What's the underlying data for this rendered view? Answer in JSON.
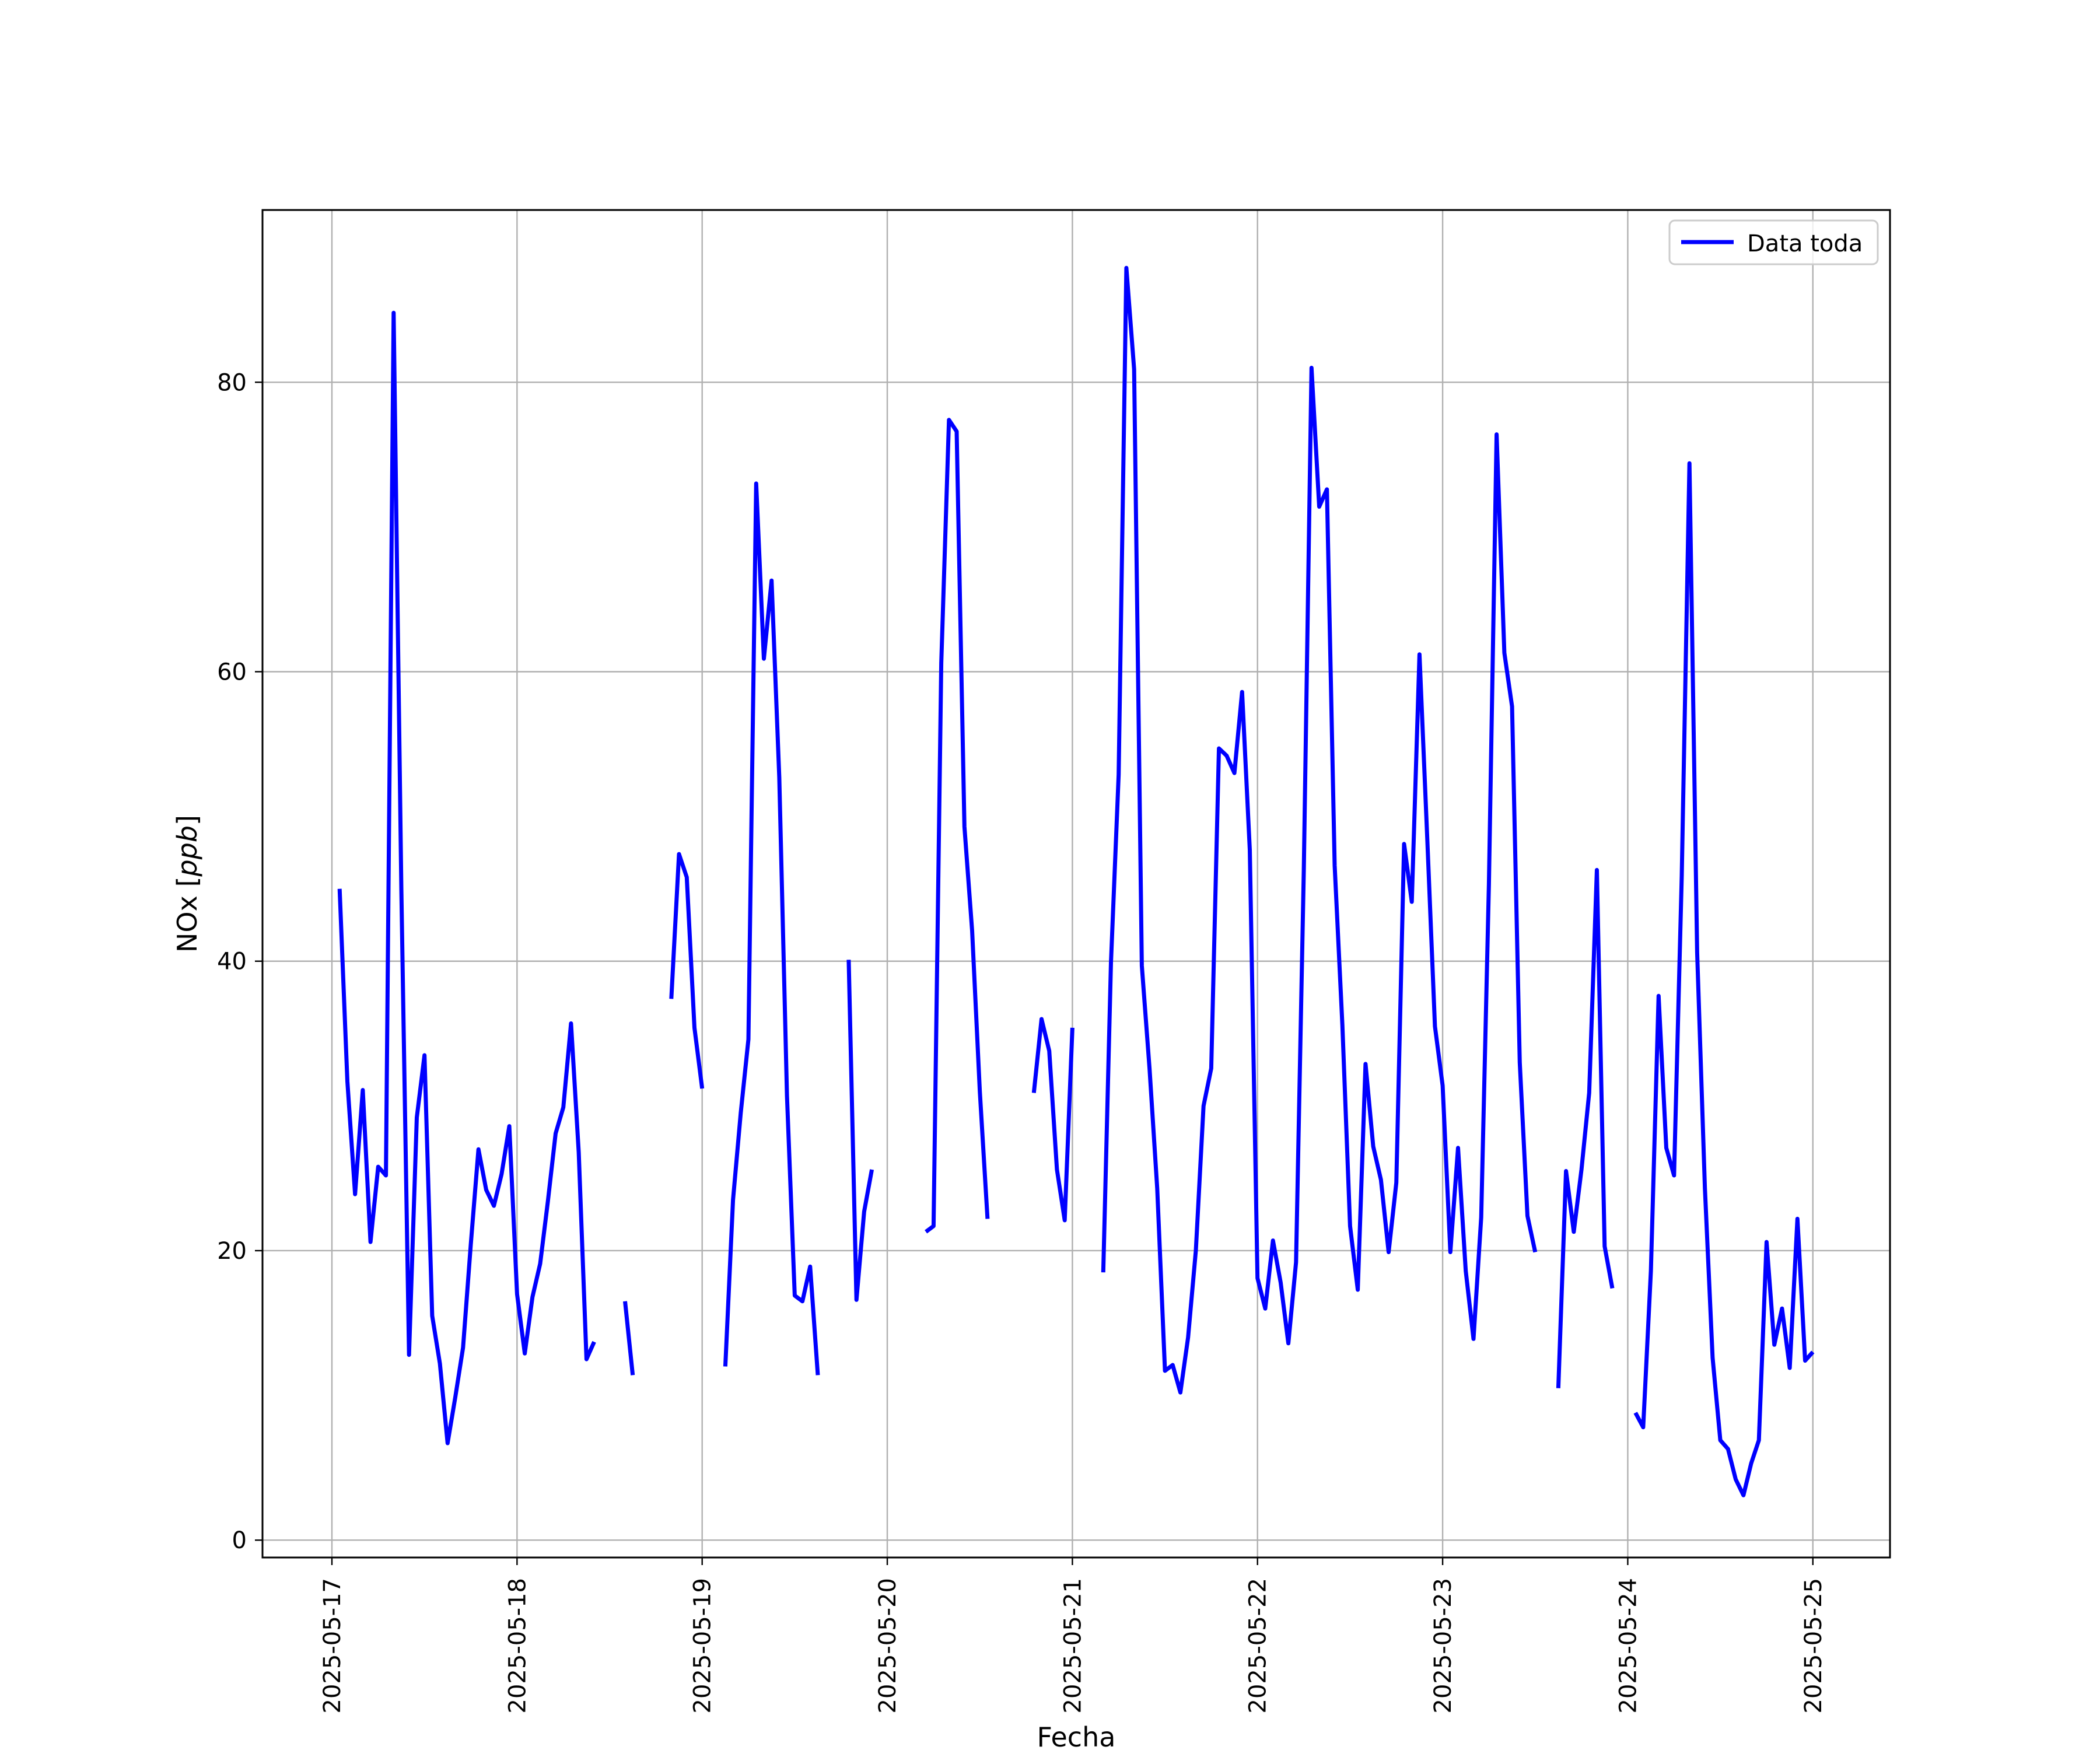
{
  "chart_data": {
    "type": "line",
    "title": "",
    "xlabel": "Fecha",
    "ylabel": "NOx [ppb]",
    "ylabel_parts": {
      "prefix": "NOx [",
      "unit": "ppb",
      "suffix": "]"
    },
    "x_tick_labels": [
      "2025-05-17",
      "2025-05-18",
      "2025-05-19",
      "2025-05-20",
      "2025-05-21",
      "2025-05-22",
      "2025-05-23",
      "2025-05-24",
      "2025-05-25"
    ],
    "y_tick_labels": [
      "0",
      "20",
      "40",
      "60",
      "80"
    ],
    "xlim": [
      "2025-05-16T15:00",
      "2025-05-25T10:00"
    ],
    "ylim": [
      -1.2,
      91.9
    ],
    "grid": true,
    "legend_position": "top-right",
    "series": [
      {
        "name": "Data toda",
        "color": "#0000ff",
        "points": [
          [
            "2025-05-17T01:00",
            45.0
          ],
          [
            "2025-05-17T02:00",
            31.7
          ],
          [
            "2025-05-17T03:00",
            23.9
          ],
          [
            "2025-05-17T04:00",
            31.1
          ],
          [
            "2025-05-17T05:00",
            20.6
          ],
          [
            "2025-05-17T06:00",
            25.8
          ],
          [
            "2025-05-17T07:00",
            25.2
          ],
          [
            "2025-05-17T08:00",
            84.8
          ],
          [
            "2025-05-17T09:00",
            45.0
          ],
          [
            "2025-05-17T10:00",
            12.8
          ],
          [
            "2025-05-17T11:00",
            29.2
          ],
          [
            "2025-05-17T12:00",
            33.5
          ],
          [
            "2025-05-17T13:00",
            15.5
          ],
          [
            "2025-05-17T14:00",
            12.2
          ],
          [
            "2025-05-17T15:00",
            6.7
          ],
          [
            "2025-05-17T16:00",
            9.9
          ],
          [
            "2025-05-17T17:00",
            13.3
          ],
          [
            "2025-05-17T18:00",
            20.4
          ],
          [
            "2025-05-17T19:00",
            27.0
          ],
          [
            "2025-05-17T20:00",
            24.2
          ],
          [
            "2025-05-17T21:00",
            23.1
          ],
          [
            "2025-05-17T22:00",
            25.3
          ],
          [
            "2025-05-17T23:00",
            28.6
          ],
          [
            "2025-05-18T00:00",
            17.0
          ],
          [
            "2025-05-18T01:00",
            12.9
          ],
          [
            "2025-05-18T02:00",
            16.8
          ],
          [
            "2025-05-18T03:00",
            19.1
          ],
          [
            "2025-05-18T04:00",
            23.4
          ],
          [
            "2025-05-18T05:00",
            28.1
          ],
          [
            "2025-05-18T06:00",
            29.9
          ],
          [
            "2025-05-18T07:00",
            35.7
          ],
          [
            "2025-05-18T08:00",
            26.8
          ],
          [
            "2025-05-18T09:00",
            12.5
          ],
          [
            "2025-05-18T10:00",
            13.7
          ],
          null,
          [
            "2025-05-18T14:00",
            16.5
          ],
          [
            "2025-05-18T15:00",
            11.4
          ],
          null,
          [
            "2025-05-18T20:00",
            37.4
          ],
          [
            "2025-05-18T21:00",
            47.4
          ],
          [
            "2025-05-18T22:00",
            45.8
          ],
          [
            "2025-05-18T23:00",
            35.4
          ],
          [
            "2025-05-19T00:00",
            31.2
          ],
          null,
          [
            "2025-05-19T03:00",
            12.0
          ],
          [
            "2025-05-19T04:00",
            23.5
          ],
          [
            "2025-05-19T05:00",
            29.5
          ],
          [
            "2025-05-19T06:00",
            34.6
          ],
          [
            "2025-05-19T07:00",
            73.0
          ],
          [
            "2025-05-19T08:00",
            60.9
          ],
          [
            "2025-05-19T09:00",
            66.3
          ],
          [
            "2025-05-19T10:00",
            52.7
          ],
          [
            "2025-05-19T11:00",
            30.7
          ],
          [
            "2025-05-19T12:00",
            16.9
          ],
          [
            "2025-05-19T13:00",
            16.5
          ],
          [
            "2025-05-19T14:00",
            18.9
          ],
          [
            "2025-05-19T15:00",
            11.4
          ],
          null,
          [
            "2025-05-19T19:00",
            40.1
          ],
          [
            "2025-05-19T20:00",
            16.6
          ],
          [
            "2025-05-19T21:00",
            22.7
          ],
          [
            "2025-05-19T22:00",
            25.6
          ],
          null,
          [
            "2025-05-20T05:00",
            21.3
          ],
          [
            "2025-05-20T06:00",
            21.7
          ],
          [
            "2025-05-20T07:00",
            60.6
          ],
          [
            "2025-05-20T08:00",
            77.4
          ],
          [
            "2025-05-20T09:00",
            76.6
          ],
          [
            "2025-05-20T10:00",
            49.3
          ],
          [
            "2025-05-20T11:00",
            42.1
          ],
          [
            "2025-05-20T12:00",
            31.0
          ],
          [
            "2025-05-20T13:00",
            22.2
          ],
          null,
          [
            "2025-05-20T19:00",
            30.9
          ],
          [
            "2025-05-20T20:00",
            36.0
          ],
          [
            "2025-05-20T21:00",
            33.8
          ],
          [
            "2025-05-20T22:00",
            25.6
          ],
          [
            "2025-05-20T23:00",
            22.1
          ],
          [
            "2025-05-21T00:00",
            35.4
          ],
          null,
          [
            "2025-05-21T04:00",
            18.5
          ],
          [
            "2025-05-21T05:00",
            39.9
          ],
          [
            "2025-05-21T06:00",
            52.9
          ],
          [
            "2025-05-21T07:00",
            87.9
          ],
          [
            "2025-05-21T08:00",
            80.9
          ],
          [
            "2025-05-21T09:00",
            39.7
          ],
          [
            "2025-05-21T10:00",
            32.6
          ],
          [
            "2025-05-21T11:00",
            24.3
          ],
          [
            "2025-05-21T12:00",
            11.7
          ],
          [
            "2025-05-21T13:00",
            12.1
          ],
          [
            "2025-05-21T14:00",
            10.2
          ],
          [
            "2025-05-21T15:00",
            14.0
          ],
          [
            "2025-05-21T16:00",
            20.0
          ],
          [
            "2025-05-21T17:00",
            30.0
          ],
          [
            "2025-05-21T18:00",
            32.6
          ],
          [
            "2025-05-21T19:00",
            54.7
          ],
          [
            "2025-05-21T20:00",
            54.2
          ],
          [
            "2025-05-21T21:00",
            53.0
          ],
          [
            "2025-05-21T22:00",
            58.6
          ],
          [
            "2025-05-21T23:00",
            47.7
          ],
          [
            "2025-05-22T00:00",
            18.1
          ],
          [
            "2025-05-22T01:00",
            16.0
          ],
          [
            "2025-05-22T02:00",
            20.7
          ],
          [
            "2025-05-22T03:00",
            17.8
          ],
          [
            "2025-05-22T04:00",
            13.6
          ],
          [
            "2025-05-22T05:00",
            19.2
          ],
          [
            "2025-05-22T06:00",
            46.3
          ],
          [
            "2025-05-22T07:00",
            81.0
          ],
          [
            "2025-05-22T08:00",
            71.4
          ],
          [
            "2025-05-22T09:00",
            72.6
          ],
          [
            "2025-05-22T10:00",
            46.6
          ],
          [
            "2025-05-22T11:00",
            35.6
          ],
          [
            "2025-05-22T12:00",
            21.7
          ],
          [
            "2025-05-22T13:00",
            17.3
          ],
          [
            "2025-05-22T14:00",
            32.9
          ],
          [
            "2025-05-22T15:00",
            27.2
          ],
          [
            "2025-05-22T16:00",
            24.9
          ],
          [
            "2025-05-22T17:00",
            19.9
          ],
          [
            "2025-05-22T18:00",
            24.7
          ],
          [
            "2025-05-22T19:00",
            48.1
          ],
          [
            "2025-05-22T20:00",
            44.1
          ],
          [
            "2025-05-22T21:00",
            61.2
          ],
          [
            "2025-05-22T22:00",
            48.6
          ],
          [
            "2025-05-22T23:00",
            35.5
          ],
          [
            "2025-05-23T00:00",
            31.4
          ],
          [
            "2025-05-23T01:00",
            19.9
          ],
          [
            "2025-05-23T02:00",
            27.1
          ],
          [
            "2025-05-23T03:00",
            18.6
          ],
          [
            "2025-05-23T04:00",
            13.9
          ],
          [
            "2025-05-23T05:00",
            22.3
          ],
          [
            "2025-05-23T06:00",
            45.3
          ],
          [
            "2025-05-23T07:00",
            76.4
          ],
          [
            "2025-05-23T08:00",
            61.3
          ],
          [
            "2025-05-23T09:00",
            57.6
          ],
          [
            "2025-05-23T10:00",
            33.0
          ],
          [
            "2025-05-23T11:00",
            22.4
          ],
          [
            "2025-05-23T12:00",
            19.9
          ],
          null,
          [
            "2025-05-23T15:00",
            10.5
          ],
          [
            "2025-05-23T16:00",
            25.5
          ],
          [
            "2025-05-23T17:00",
            21.3
          ],
          [
            "2025-05-23T18:00",
            25.6
          ],
          [
            "2025-05-23T19:00",
            30.9
          ],
          [
            "2025-05-23T20:00",
            46.3
          ],
          [
            "2025-05-23T21:00",
            20.3
          ],
          [
            "2025-05-23T22:00",
            17.4
          ],
          null,
          [
            "2025-05-24T01:00",
            8.8
          ],
          [
            "2025-05-24T02:00",
            7.8
          ],
          [
            "2025-05-24T03:00",
            18.6
          ],
          [
            "2025-05-24T04:00",
            37.6
          ],
          [
            "2025-05-24T05:00",
            27.1
          ],
          [
            "2025-05-24T06:00",
            25.2
          ],
          [
            "2025-05-24T07:00",
            45.9
          ],
          [
            "2025-05-24T08:00",
            74.4
          ],
          [
            "2025-05-24T09:00",
            40.6
          ],
          [
            "2025-05-24T10:00",
            24.3
          ],
          [
            "2025-05-24T11:00",
            12.6
          ],
          [
            "2025-05-24T12:00",
            6.9
          ],
          [
            "2025-05-24T13:00",
            6.3
          ],
          [
            "2025-05-24T14:00",
            4.2
          ],
          [
            "2025-05-24T15:00",
            3.1
          ],
          [
            "2025-05-24T16:00",
            5.3
          ],
          [
            "2025-05-24T17:00",
            6.9
          ],
          [
            "2025-05-24T18:00",
            20.6
          ],
          [
            "2025-05-24T19:00",
            13.5
          ],
          [
            "2025-05-24T20:00",
            16.0
          ],
          [
            "2025-05-24T21:00",
            11.9
          ],
          [
            "2025-05-24T22:00",
            22.2
          ],
          [
            "2025-05-24T23:00",
            12.4
          ],
          [
            "2025-05-25T00:00",
            13.0
          ]
        ]
      }
    ]
  }
}
